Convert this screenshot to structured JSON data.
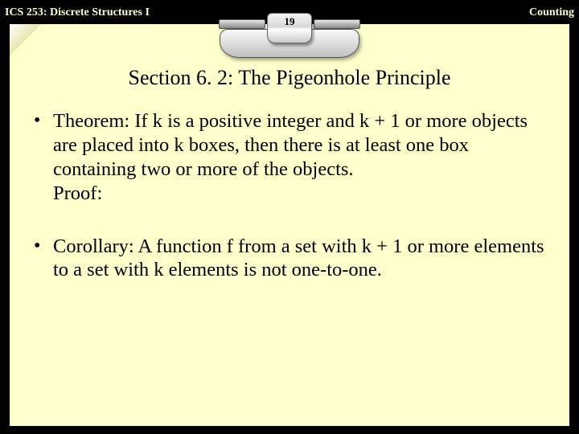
{
  "header": {
    "left": "ICS 253: Discrete Structures I",
    "right": "Counting",
    "page_number": "19"
  },
  "slide": {
    "title": "Section 6. 2: The Pigeonhole Principle",
    "bullets": [
      {
        "text": "Theorem: If k is a positive integer and k + 1 or more objects are placed into k boxes, then there is at least one box containing two or more of the objects.",
        "sublabel": "Proof:"
      },
      {
        "text": "Corollary: A function f from a set with k + 1 or more elements to a set with k elements is not one-to-one.",
        "sublabel": ""
      }
    ]
  },
  "style": {
    "background": "#000000",
    "slide_bg": "#ffffcc",
    "header_text_color": "#ffffcc",
    "body_text_color": "#000000",
    "title_fontsize": 26,
    "body_fontsize": 24.5,
    "font_family": "Times New Roman"
  }
}
